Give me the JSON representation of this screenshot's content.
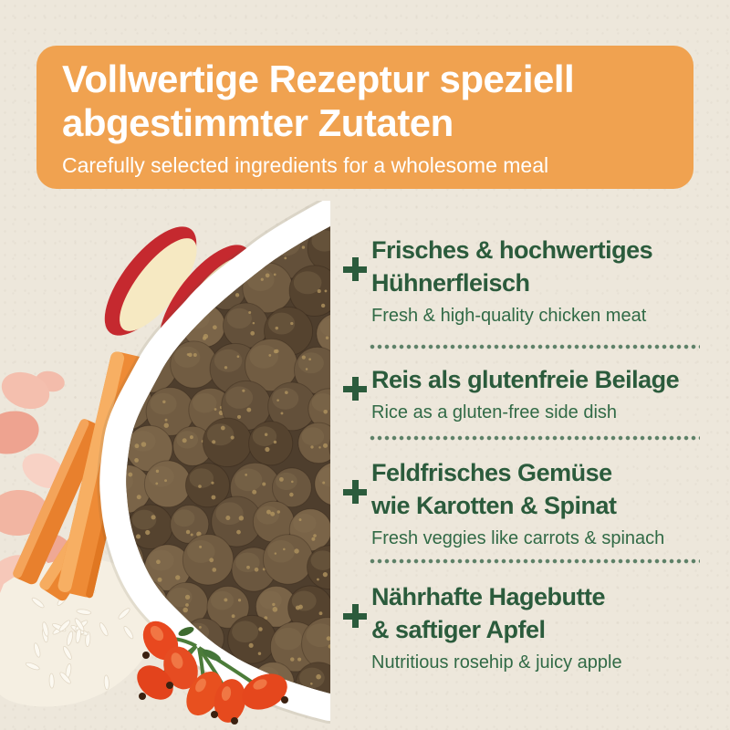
{
  "header": {
    "title_line1": "Vollwertige Rezeptur speziell",
    "title_line2": "abgestimmter Zutaten",
    "subtitle": "Carefully selected ingredients for a wholesome meal"
  },
  "ingredients": {
    "items": [
      {
        "de_line1": "Frisches & hochwertiges",
        "de_line2": "Hühnerfleisch",
        "en": "Fresh & high-quality chicken meat"
      },
      {
        "de_line1": "Reis als glutenfreie Beilage",
        "de_line2": "",
        "en": "Rice as a gluten-free side dish"
      },
      {
        "de_line1": "Feldfrisches Gemüse",
        "de_line2": "wie Karotten & Spinat",
        "en": "Fresh veggies like carrots & spinach"
      },
      {
        "de_line1": "Nährhafte Hagebutte",
        "de_line2": "& saftiger Apfel",
        "en": "Nutritious rosehip & juicy apple"
      }
    ]
  },
  "photo": {
    "description": "White bowl filled with brown dry kibble surrounded by apple slices, carrot sticks, raw chicken pieces, rice grains and rosehips"
  },
  "colors": {
    "background": "#EDE7DB",
    "banner_orange": "#F0A250",
    "heading_green": "#2B5B3C",
    "subtitle_green": "#316A46",
    "divider_dot_green": "#5E8168",
    "kibble_browns": [
      "#6B573F",
      "#7A6448",
      "#55432F",
      "#715C42",
      "#63503A"
    ]
  }
}
